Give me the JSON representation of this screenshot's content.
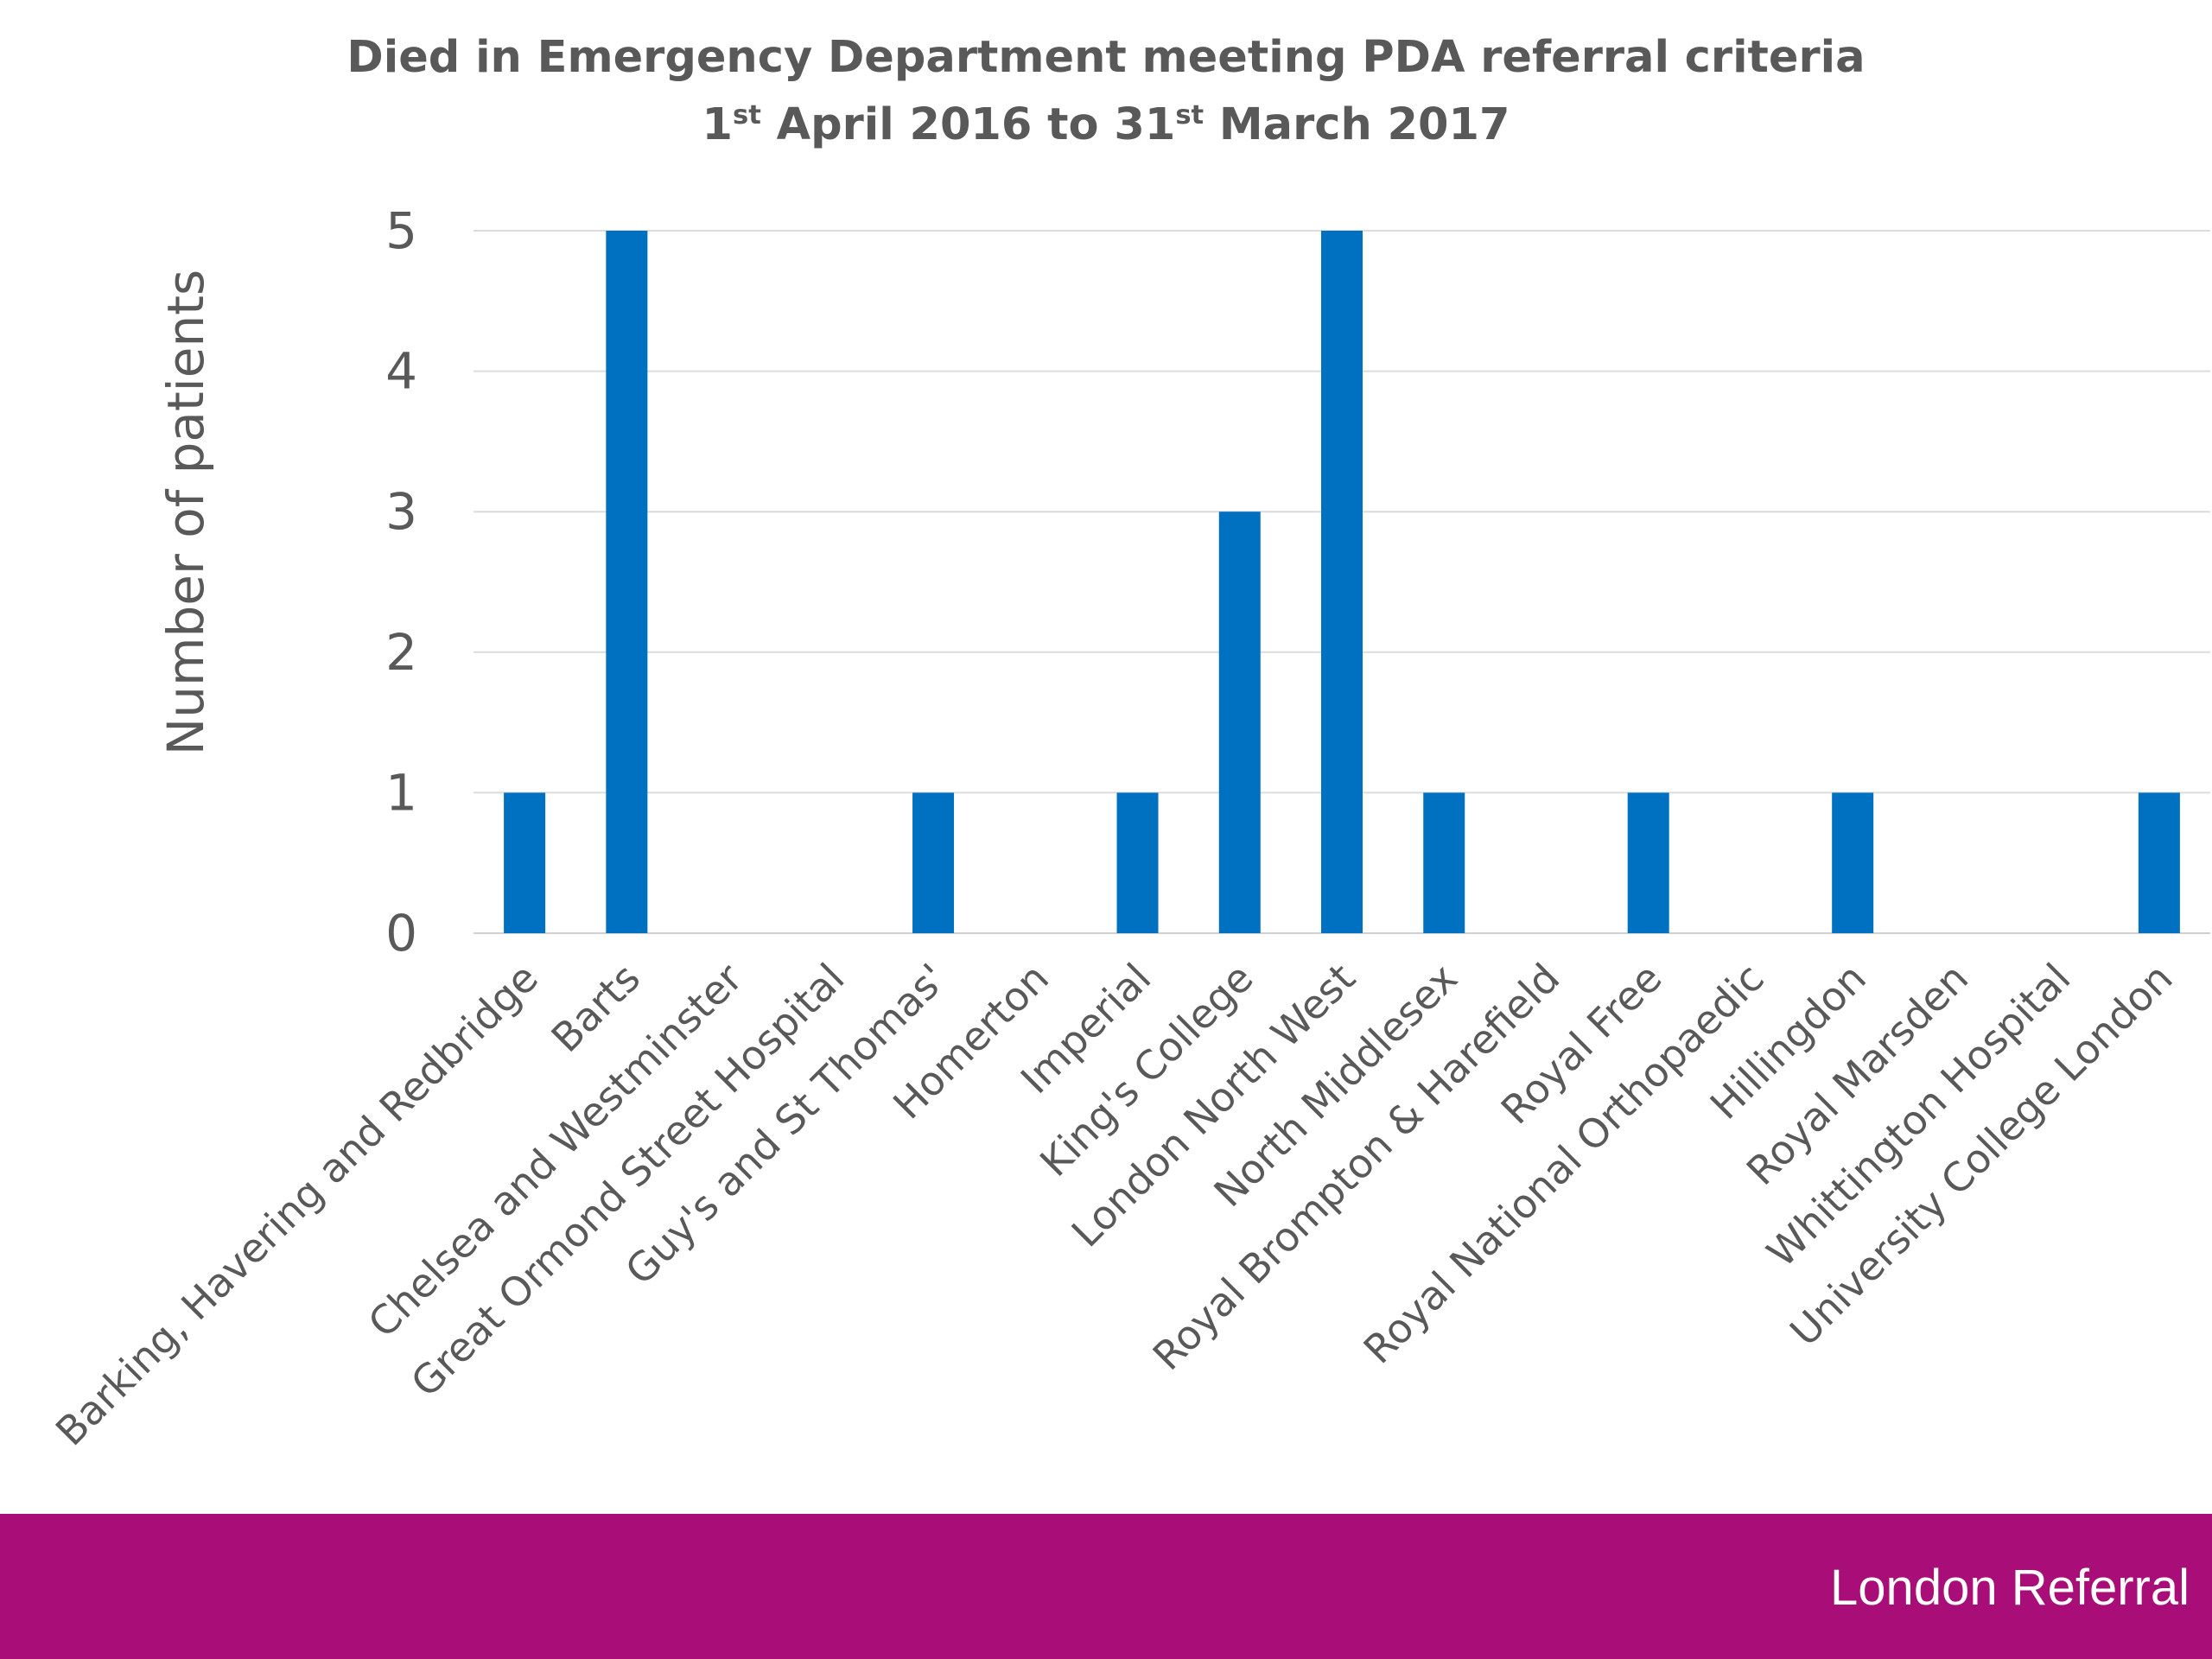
{
  "chart_data": {
    "type": "bar",
    "title": "Died in Emergency Department meeting PDA referral criteria",
    "subtitle": {
      "start_day": "1",
      "start_suffix": "st",
      "start_rest": " April 2016 to ",
      "end_day": "31",
      "end_suffix": "st",
      "end_rest": " March 2017"
    },
    "xlabel": "",
    "ylabel": "Number of patients",
    "ylim": [
      0,
      5
    ],
    "yticks": [
      0,
      1,
      2,
      3,
      4,
      5
    ],
    "grid": true,
    "legend": "none",
    "bar_color": "#0070c0",
    "categories": [
      "Barking, Havering and Redbridge",
      "Barts",
      "Chelsea and Westminster",
      "Great Ormond Street Hospital",
      "Guy's and St Thomas'",
      "Homerton",
      "Imperial",
      "King's College",
      "London North West",
      "North Middlesex",
      "Royal Brompton & Harefield",
      "Royal Free",
      "Royal National Orthopaedic",
      "Hillingdon",
      "Royal Marsden",
      "Whittington Hospital",
      "University College London"
    ],
    "values": [
      1,
      5,
      0,
      0,
      1,
      0,
      1,
      3,
      5,
      1,
      0,
      1,
      0,
      1,
      0,
      0,
      1
    ]
  },
  "footer": {
    "label": "London Referral",
    "color": "#a80d78"
  }
}
